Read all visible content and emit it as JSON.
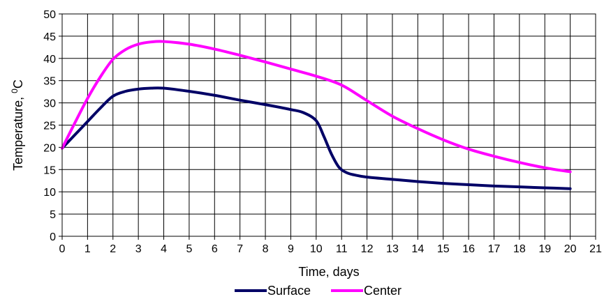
{
  "chart_data": {
    "type": "line",
    "title": "",
    "xlabel": "Time, days",
    "ylabel_main": "Temperature, ",
    "ylabel_sup": "0",
    "ylabel_unit": "C",
    "xlim": [
      0,
      21
    ],
    "ylim": [
      0,
      50
    ],
    "xticks": [
      0,
      1,
      2,
      3,
      4,
      5,
      6,
      7,
      8,
      9,
      10,
      11,
      12,
      13,
      14,
      15,
      16,
      17,
      18,
      19,
      20,
      21
    ],
    "yticks": [
      0,
      5,
      10,
      15,
      20,
      25,
      30,
      35,
      40,
      45,
      50
    ],
    "grid": true,
    "legend_position": "bottom",
    "series": [
      {
        "name": "Surface",
        "color": "#000066",
        "x": [
          0,
          0.5,
          1,
          1.5,
          2,
          2.5,
          3,
          3.5,
          4,
          5,
          6,
          7,
          8,
          9,
          9.5,
          10,
          10.3,
          10.6,
          10.9,
          11.2,
          11.5,
          12,
          13,
          14,
          15,
          16,
          17,
          18,
          19,
          20
        ],
        "y": [
          19.8,
          22.8,
          25.8,
          28.8,
          31.5,
          32.6,
          33.1,
          33.3,
          33.3,
          32.6,
          31.7,
          30.6,
          29.6,
          28.5,
          27.8,
          26.0,
          22.5,
          18.5,
          15.5,
          14.3,
          13.8,
          13.3,
          12.8,
          12.3,
          11.9,
          11.6,
          11.3,
          11.1,
          10.9,
          10.7
        ]
      },
      {
        "name": "Center",
        "color": "#ff00ff",
        "x": [
          0,
          0.5,
          1,
          1.5,
          2,
          2.5,
          3,
          3.5,
          4,
          5,
          6,
          7,
          8,
          9,
          10,
          11,
          12,
          13,
          14,
          15,
          16,
          17,
          18,
          19,
          20
        ],
        "y": [
          19.8,
          25.5,
          31.0,
          35.8,
          39.8,
          42.0,
          43.2,
          43.7,
          43.8,
          43.2,
          42.1,
          40.7,
          39.2,
          37.6,
          36.0,
          34.0,
          30.5,
          27.0,
          24.2,
          21.7,
          19.6,
          18.0,
          16.6,
          15.4,
          14.5
        ]
      }
    ]
  }
}
